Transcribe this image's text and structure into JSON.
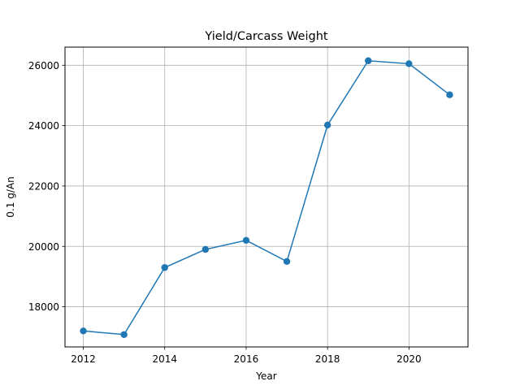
{
  "chart_data": {
    "type": "line",
    "title": "Yield/Carcass Weight",
    "xlabel": "Year",
    "ylabel": "0.1 g/An",
    "x": [
      2012,
      2013,
      2014,
      2015,
      2016,
      2017,
      2018,
      2019,
      2020,
      2021
    ],
    "series": [
      {
        "values": [
          17200,
          17080,
          19300,
          19900,
          20200,
          19500,
          24020,
          26150,
          26050,
          25020
        ],
        "color": "#1f77b4",
        "marker": "circle"
      }
    ],
    "xlim": [
      2011.55,
      2021.45
    ],
    "ylim": [
      16670,
      26600
    ],
    "xticks": [
      2012,
      2014,
      2016,
      2018,
      2020
    ],
    "yticks": [
      18000,
      20000,
      22000,
      24000,
      26000
    ],
    "grid": true,
    "legend": "none"
  }
}
